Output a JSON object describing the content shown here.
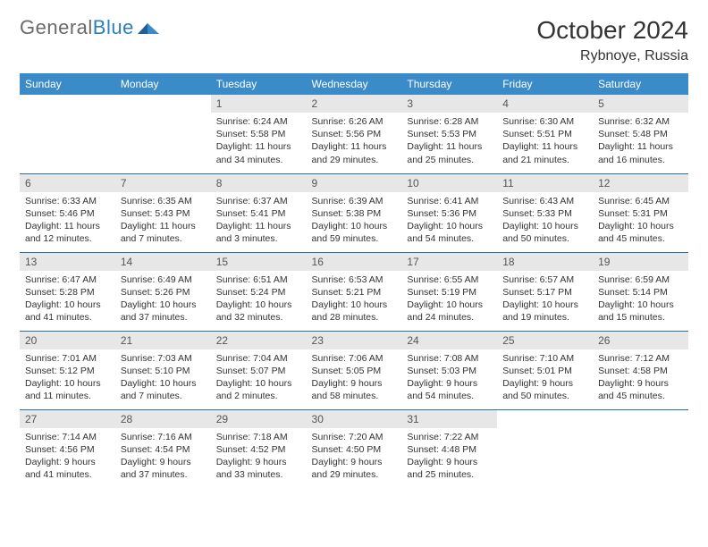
{
  "branding": {
    "name_part1": "General",
    "name_part2": "Blue"
  },
  "header": {
    "month_title": "October 2024",
    "location": "Rybnoye, Russia"
  },
  "colors": {
    "header_bg": "#3b8bc9",
    "header_text": "#ffffff",
    "daynum_bg": "#e7e7e7",
    "row_border": "#2a6fa3",
    "logo_gray": "#6a6a6a",
    "logo_blue": "#2a7fbf"
  },
  "weekdays": [
    "Sunday",
    "Monday",
    "Tuesday",
    "Wednesday",
    "Thursday",
    "Friday",
    "Saturday"
  ],
  "weeks": [
    [
      {
        "empty": true
      },
      {
        "empty": true
      },
      {
        "n": "1",
        "sr": "Sunrise: 6:24 AM",
        "ss": "Sunset: 5:58 PM",
        "d1": "Daylight: 11 hours",
        "d2": "and 34 minutes."
      },
      {
        "n": "2",
        "sr": "Sunrise: 6:26 AM",
        "ss": "Sunset: 5:56 PM",
        "d1": "Daylight: 11 hours",
        "d2": "and 29 minutes."
      },
      {
        "n": "3",
        "sr": "Sunrise: 6:28 AM",
        "ss": "Sunset: 5:53 PM",
        "d1": "Daylight: 11 hours",
        "d2": "and 25 minutes."
      },
      {
        "n": "4",
        "sr": "Sunrise: 6:30 AM",
        "ss": "Sunset: 5:51 PM",
        "d1": "Daylight: 11 hours",
        "d2": "and 21 minutes."
      },
      {
        "n": "5",
        "sr": "Sunrise: 6:32 AM",
        "ss": "Sunset: 5:48 PM",
        "d1": "Daylight: 11 hours",
        "d2": "and 16 minutes."
      }
    ],
    [
      {
        "n": "6",
        "sr": "Sunrise: 6:33 AM",
        "ss": "Sunset: 5:46 PM",
        "d1": "Daylight: 11 hours",
        "d2": "and 12 minutes."
      },
      {
        "n": "7",
        "sr": "Sunrise: 6:35 AM",
        "ss": "Sunset: 5:43 PM",
        "d1": "Daylight: 11 hours",
        "d2": "and 7 minutes."
      },
      {
        "n": "8",
        "sr": "Sunrise: 6:37 AM",
        "ss": "Sunset: 5:41 PM",
        "d1": "Daylight: 11 hours",
        "d2": "and 3 minutes."
      },
      {
        "n": "9",
        "sr": "Sunrise: 6:39 AM",
        "ss": "Sunset: 5:38 PM",
        "d1": "Daylight: 10 hours",
        "d2": "and 59 minutes."
      },
      {
        "n": "10",
        "sr": "Sunrise: 6:41 AM",
        "ss": "Sunset: 5:36 PM",
        "d1": "Daylight: 10 hours",
        "d2": "and 54 minutes."
      },
      {
        "n": "11",
        "sr": "Sunrise: 6:43 AM",
        "ss": "Sunset: 5:33 PM",
        "d1": "Daylight: 10 hours",
        "d2": "and 50 minutes."
      },
      {
        "n": "12",
        "sr": "Sunrise: 6:45 AM",
        "ss": "Sunset: 5:31 PM",
        "d1": "Daylight: 10 hours",
        "d2": "and 45 minutes."
      }
    ],
    [
      {
        "n": "13",
        "sr": "Sunrise: 6:47 AM",
        "ss": "Sunset: 5:28 PM",
        "d1": "Daylight: 10 hours",
        "d2": "and 41 minutes."
      },
      {
        "n": "14",
        "sr": "Sunrise: 6:49 AM",
        "ss": "Sunset: 5:26 PM",
        "d1": "Daylight: 10 hours",
        "d2": "and 37 minutes."
      },
      {
        "n": "15",
        "sr": "Sunrise: 6:51 AM",
        "ss": "Sunset: 5:24 PM",
        "d1": "Daylight: 10 hours",
        "d2": "and 32 minutes."
      },
      {
        "n": "16",
        "sr": "Sunrise: 6:53 AM",
        "ss": "Sunset: 5:21 PM",
        "d1": "Daylight: 10 hours",
        "d2": "and 28 minutes."
      },
      {
        "n": "17",
        "sr": "Sunrise: 6:55 AM",
        "ss": "Sunset: 5:19 PM",
        "d1": "Daylight: 10 hours",
        "d2": "and 24 minutes."
      },
      {
        "n": "18",
        "sr": "Sunrise: 6:57 AM",
        "ss": "Sunset: 5:17 PM",
        "d1": "Daylight: 10 hours",
        "d2": "and 19 minutes."
      },
      {
        "n": "19",
        "sr": "Sunrise: 6:59 AM",
        "ss": "Sunset: 5:14 PM",
        "d1": "Daylight: 10 hours",
        "d2": "and 15 minutes."
      }
    ],
    [
      {
        "n": "20",
        "sr": "Sunrise: 7:01 AM",
        "ss": "Sunset: 5:12 PM",
        "d1": "Daylight: 10 hours",
        "d2": "and 11 minutes."
      },
      {
        "n": "21",
        "sr": "Sunrise: 7:03 AM",
        "ss": "Sunset: 5:10 PM",
        "d1": "Daylight: 10 hours",
        "d2": "and 7 minutes."
      },
      {
        "n": "22",
        "sr": "Sunrise: 7:04 AM",
        "ss": "Sunset: 5:07 PM",
        "d1": "Daylight: 10 hours",
        "d2": "and 2 minutes."
      },
      {
        "n": "23",
        "sr": "Sunrise: 7:06 AM",
        "ss": "Sunset: 5:05 PM",
        "d1": "Daylight: 9 hours",
        "d2": "and 58 minutes."
      },
      {
        "n": "24",
        "sr": "Sunrise: 7:08 AM",
        "ss": "Sunset: 5:03 PM",
        "d1": "Daylight: 9 hours",
        "d2": "and 54 minutes."
      },
      {
        "n": "25",
        "sr": "Sunrise: 7:10 AM",
        "ss": "Sunset: 5:01 PM",
        "d1": "Daylight: 9 hours",
        "d2": "and 50 minutes."
      },
      {
        "n": "26",
        "sr": "Sunrise: 7:12 AM",
        "ss": "Sunset: 4:58 PM",
        "d1": "Daylight: 9 hours",
        "d2": "and 45 minutes."
      }
    ],
    [
      {
        "n": "27",
        "sr": "Sunrise: 7:14 AM",
        "ss": "Sunset: 4:56 PM",
        "d1": "Daylight: 9 hours",
        "d2": "and 41 minutes."
      },
      {
        "n": "28",
        "sr": "Sunrise: 7:16 AM",
        "ss": "Sunset: 4:54 PM",
        "d1": "Daylight: 9 hours",
        "d2": "and 37 minutes."
      },
      {
        "n": "29",
        "sr": "Sunrise: 7:18 AM",
        "ss": "Sunset: 4:52 PM",
        "d1": "Daylight: 9 hours",
        "d2": "and 33 minutes."
      },
      {
        "n": "30",
        "sr": "Sunrise: 7:20 AM",
        "ss": "Sunset: 4:50 PM",
        "d1": "Daylight: 9 hours",
        "d2": "and 29 minutes."
      },
      {
        "n": "31",
        "sr": "Sunrise: 7:22 AM",
        "ss": "Sunset: 4:48 PM",
        "d1": "Daylight: 9 hours",
        "d2": "and 25 minutes."
      },
      {
        "empty": true
      },
      {
        "empty": true
      }
    ]
  ]
}
